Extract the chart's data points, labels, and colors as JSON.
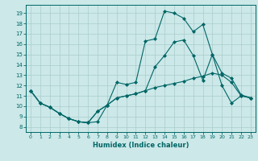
{
  "xlabel": "Humidex (Indice chaleur)",
  "bg_color": "#cce8e8",
  "grid_color": "#aacccc",
  "line_color": "#006666",
  "xlim": [
    -0.5,
    23.5
  ],
  "ylim": [
    7.5,
    19.8
  ],
  "xticks": [
    0,
    1,
    2,
    3,
    4,
    5,
    6,
    7,
    8,
    9,
    10,
    11,
    12,
    13,
    14,
    15,
    16,
    17,
    18,
    19,
    20,
    21,
    22,
    23
  ],
  "yticks": [
    8,
    9,
    10,
    11,
    12,
    13,
    14,
    15,
    16,
    17,
    18,
    19
  ],
  "line1_x": [
    0,
    1,
    2,
    3,
    4,
    5,
    6,
    7,
    8,
    9,
    10,
    11,
    12,
    13,
    14,
    15,
    16,
    17,
    18,
    19,
    20,
    21,
    22,
    23
  ],
  "line1_y": [
    11.5,
    10.3,
    9.9,
    9.3,
    8.8,
    8.5,
    8.4,
    8.5,
    10.1,
    12.3,
    12.1,
    12.3,
    16.3,
    16.5,
    19.2,
    19.0,
    18.5,
    17.2,
    17.9,
    15.0,
    13.2,
    12.7,
    11.1,
    10.8
  ],
  "line2_x": [
    0,
    1,
    2,
    3,
    4,
    5,
    6,
    7,
    8,
    9,
    10,
    11,
    12,
    13,
    14,
    15,
    16,
    17,
    18,
    19,
    20,
    21,
    22,
    23
  ],
  "line2_y": [
    11.5,
    10.3,
    9.9,
    9.3,
    8.8,
    8.5,
    8.4,
    9.5,
    10.1,
    10.8,
    11.0,
    11.2,
    11.5,
    11.8,
    12.0,
    12.2,
    12.4,
    12.7,
    12.9,
    13.2,
    13.0,
    12.3,
    11.0,
    10.8
  ],
  "line3_x": [
    0,
    1,
    2,
    3,
    4,
    5,
    6,
    7,
    8,
    9,
    10,
    11,
    12,
    13,
    14,
    15,
    16,
    17,
    18,
    19,
    20,
    21,
    22,
    23
  ],
  "line3_y": [
    11.5,
    10.3,
    9.9,
    9.3,
    8.8,
    8.5,
    8.4,
    9.5,
    10.1,
    10.8,
    11.0,
    11.2,
    11.5,
    13.8,
    14.9,
    16.2,
    16.4,
    14.9,
    12.5,
    15.0,
    12.0,
    10.3,
    11.0,
    10.8
  ]
}
